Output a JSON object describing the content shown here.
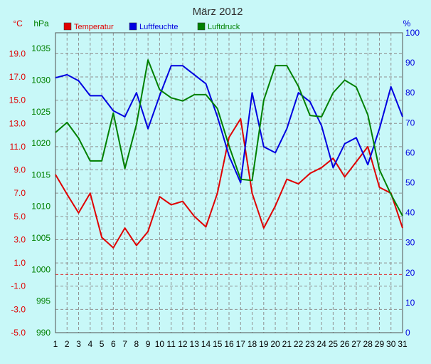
{
  "chart_data": {
    "type": "line",
    "title": "März 2012",
    "units": {
      "temp": "°C",
      "pressure": "hPa",
      "humidity": "%"
    },
    "x": [
      1,
      2,
      3,
      4,
      5,
      6,
      7,
      8,
      9,
      10,
      11,
      12,
      13,
      14,
      15,
      16,
      17,
      18,
      19,
      20,
      21,
      22,
      23,
      24,
      25,
      26,
      27,
      28,
      29,
      30,
      31
    ],
    "x_ticks": [
      "1",
      "2",
      "3",
      "4",
      "5",
      "6",
      "7",
      "8",
      "9",
      "10",
      "11",
      "12",
      "13",
      "14",
      "15",
      "16",
      "17",
      "18",
      "19",
      "20",
      "21",
      "22",
      "23",
      "24",
      "25",
      "26",
      "27",
      "28",
      "29",
      "30",
      "31"
    ],
    "temp_ticks": [
      "19.0",
      "17.0",
      "15.0",
      "13.0",
      "11.0",
      "9.0",
      "7.0",
      "5.0",
      "3.0",
      "1.0",
      "-1.0",
      "-3.0",
      "-5.0"
    ],
    "pressure_ticks": [
      "1035",
      "1030",
      "1025",
      "1020",
      "1015",
      "1010",
      "1005",
      "1000",
      "995",
      "990"
    ],
    "humidity_ticks": [
      "100",
      "90",
      "80",
      "70",
      "60",
      "50",
      "40",
      "30",
      "20",
      "10",
      "0"
    ],
    "ylim_temp": [
      -5,
      20.8
    ],
    "ylim_pressure": [
      990,
      1037.5
    ],
    "ylim_humidity": [
      0,
      100
    ],
    "series": [
      {
        "name": "Temperatur",
        "axis": "temp",
        "color": "#e00000",
        "values": [
          8.6,
          6.9,
          5.3,
          7.0,
          3.2,
          2.3,
          4.0,
          2.5,
          3.7,
          6.7,
          6.0,
          6.3,
          5.0,
          4.1,
          7.0,
          11.8,
          13.4,
          7.0,
          4.0,
          5.9,
          8.2,
          7.8,
          8.7,
          9.2,
          10.0,
          8.4,
          9.7,
          11.0,
          7.5,
          7.0,
          4.0
        ]
      },
      {
        "name": "Luftfeuchte",
        "axis": "humidity",
        "color": "#0000e0",
        "values": [
          85,
          86,
          84,
          79,
          79,
          74,
          72,
          80,
          68,
          79,
          89,
          89,
          86,
          83,
          72,
          59,
          50,
          80,
          62,
          60,
          68,
          80,
          77,
          69,
          55,
          63,
          65,
          56,
          68,
          82,
          72
        ]
      },
      {
        "name": "Luftdruck",
        "axis": "pressure",
        "color": "#008000",
        "values": [
          1021.7,
          1023.3,
          1020.8,
          1017.2,
          1017.2,
          1024.8,
          1016.0,
          1023.0,
          1033.2,
          1028.5,
          1027.2,
          1026.7,
          1027.7,
          1027.7,
          1025.5,
          1019.6,
          1014.3,
          1014.1,
          1026.8,
          1032.3,
          1032.3,
          1029.0,
          1024.4,
          1024.2,
          1028.0,
          1030.0,
          1028.9,
          1024.5,
          1015.8,
          1011.9,
          1008.5
        ]
      }
    ]
  }
}
